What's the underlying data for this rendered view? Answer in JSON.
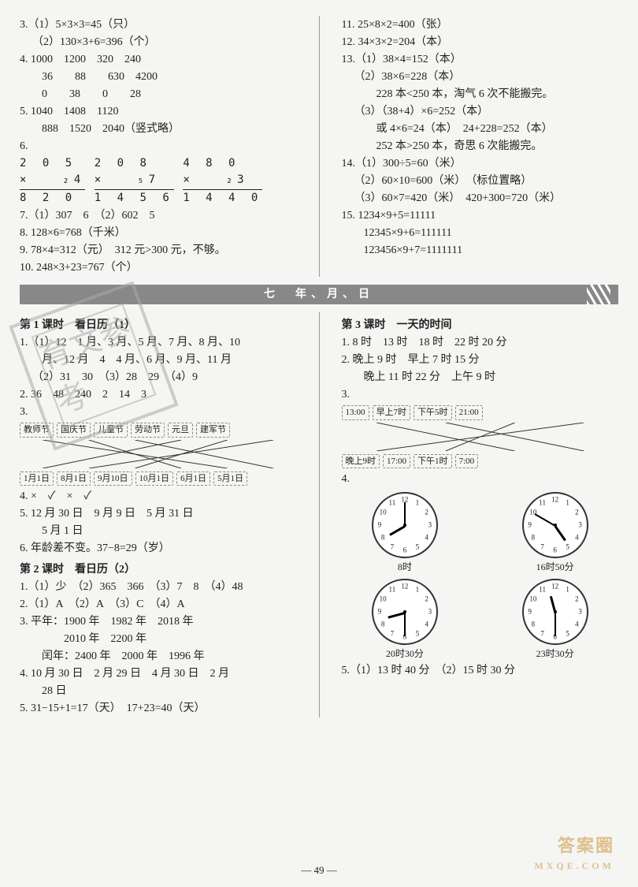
{
  "top": {
    "left": {
      "q3_1": "3.（1）5×3×3=45（只）",
      "q3_2": "（2）130×3+6=396（个）",
      "q4_row1": "4. 1000　1200　320　240",
      "q4_row2": "　　36　　88　　630　4200",
      "q4_row3": "　　0　　38　　0　　28",
      "q5_row1": "5. 1040　1408　1120",
      "q5_row2": "　　888　1520　2040（竖式略）",
      "q6_label": "6.",
      "mult1_a": "2 0 5",
      "mult1_b": "×　　₂4",
      "mult1_r": "8 2 0",
      "mult2_a": "2 0 8",
      "mult2_b": "×　　₅7",
      "mult2_r": "1 4 5 6",
      "mult3_a": "4 8 0",
      "mult3_b": "×　　₂3",
      "mult3_r": "1 4 4 0",
      "q7": "7.（1）307　6　（2）602　5",
      "q8": "8. 128×6=768（千米）",
      "q9": "9. 78×4=312（元）　312 元>300 元，不够。",
      "q10": "10. 248×3+23=767（个）"
    },
    "right": {
      "q11": "11. 25×8×2=400（张）",
      "q12": "12. 34×3×2=204（本）",
      "q13_1": "13.（1）38×4=152（本）",
      "q13_2": "（2）38×6=228（本）",
      "q13_2b": "　　228 本<250 本，淘气 6 次不能搬完。",
      "q13_3": "（3）（38+4）×6=252（本）",
      "q13_3b": "　　或 4×6=24（本）　24+228=252（本）",
      "q13_3c": "　　252 本>250 本，奇思 6 次能搬完。",
      "q14_1": "14.（1）300÷5=60（米）",
      "q14_2": "（2）60×10=600（米）　（标位置略）",
      "q14_3": "（3）60×7=420（米）　420+300=720（米）",
      "q15_1": "15. 1234×9+5=11111",
      "q15_2": "　　12345×9+6=111111",
      "q15_3": "　　123456×9+7=1111111"
    }
  },
  "banner": "七　年、月、日",
  "bottom": {
    "left": {
      "lesson1": "第 1 课时　看日历（1）",
      "l1_1a": "1.（1）12　1 月、3 月、5 月、7 月、8 月、10",
      "l1_1b": "　　月、12 月　4　4 月、6 月、9 月、11 月",
      "l1_1c": "（2）31　30　（3）28　29　（4）9",
      "l1_2": "2. 36　48　240　2　14　3",
      "l1_3": "3.",
      "tags_top": [
        "教师节",
        "国庆节",
        "儿童节",
        "劳动节",
        "元旦",
        "建军节"
      ],
      "tags_bot": [
        "1月1日",
        "8月1日",
        "9月10日",
        "10月1日",
        "6月1日",
        "5月1日"
      ],
      "l1_4": "4. ×　✓　×　✓",
      "l1_5a": "5. 12 月 30 日　9 月 9 日　5 月 31 日",
      "l1_5b": "　　5 月 1 日",
      "l1_6": "6. 年龄差不变。37−8=29（岁）",
      "lesson2": "第 2 课时　看日历（2）",
      "l2_1": "1.（1）少　（2）365　366　（3）7　8　（4）48",
      "l2_2": "2.（1）A　（2）A　（3）C　（4）A",
      "l2_3a": "3. 平年：1900 年　1982 年　2018 年",
      "l2_3b": "　　　　2010 年　2200 年",
      "l2_3c": "　　闰年：2400 年　2000 年　1996 年",
      "l2_4a": "4. 10 月 30 日　2 月 29 日　4 月 30 日　2 月",
      "l2_4b": "　　28 日",
      "l2_5": "5. 31−15+1=17（天）　17+23=40（天）"
    },
    "right": {
      "lesson3": "第 3 课时　一天的时间",
      "l3_1": "1. 8 时　13 时　18 时　22 时 20 分",
      "l3_2a": "2. 晚上 9 时　早上 7 时 15 分",
      "l3_2b": "　　晚上 11 时 22 分　上午 9 时",
      "l3_3": "3.",
      "tags3_top": [
        "13:00",
        "早上7时",
        "下午5时",
        "21:00"
      ],
      "tags3_bot": [
        "晚上9时",
        "17:00",
        "下午1时",
        "7:00"
      ],
      "l3_4": "4.",
      "clocks": [
        {
          "label": "8时",
          "hour": 8,
          "minute": 0
        },
        {
          "label": "16时50分",
          "hour": 4.83,
          "minute": 50
        },
        {
          "label": "20时30分",
          "hour": 8.5,
          "minute": 30
        },
        {
          "label": "23时30分",
          "hour": 11.5,
          "minute": 30
        }
      ],
      "l3_5": "5.（1）13 时 40 分　（2）15 时 30 分"
    }
  },
  "page": "— 49 —",
  "watermark": {
    "main": "答案圈",
    "sub": "MXQE.COM"
  },
  "stamp": "育文参考"
}
